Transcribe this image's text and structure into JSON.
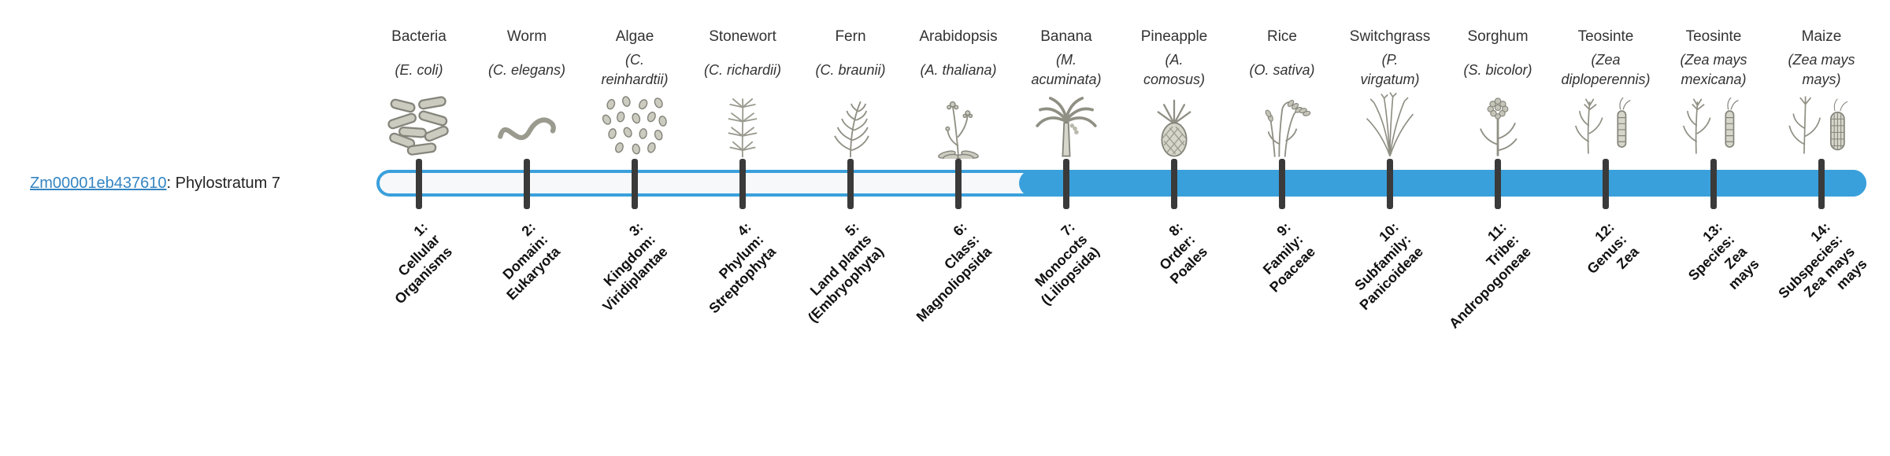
{
  "gene": {
    "id": "Zm00001eb437610",
    "suffix": ": Phylostratum 7"
  },
  "colors": {
    "accent_blue": "#3aa0dc",
    "link_blue": "#3585c2",
    "tick_dark": "#3a3a3a",
    "track_bg": "#f6f8fa",
    "text_dark": "#333333"
  },
  "timeline": {
    "phylostratum_highlighted": 7,
    "total_strata": 14
  },
  "strata": [
    {
      "common": "Bacteria",
      "latin": "(E. coli)",
      "icon": "bacteria-icon",
      "label": "1:\nCellular\nOrganisms"
    },
    {
      "common": "Worm",
      "latin": "(C. elegans)",
      "icon": "worm-icon",
      "label": "2:\nDomain:\nEukaryota"
    },
    {
      "common": "Algae",
      "latin": "(C.\nreinhardtii)",
      "icon": "algae-icon",
      "label": "3:\nKingdom:\nViridiplantae"
    },
    {
      "common": "Stonewort",
      "latin": "(C. richardii)",
      "icon": "stonewort-icon",
      "label": "4:\nPhylum:\nStreptophyta"
    },
    {
      "common": "Fern",
      "latin": "(C. braunii)",
      "icon": "fern-icon",
      "label": "5:\nLand plants\n(Embryophyta)"
    },
    {
      "common": "Arabidopsis",
      "latin": "(A. thaliana)",
      "icon": "arabidopsis-icon",
      "label": "6:\nClass:\nMagnoliopsida"
    },
    {
      "common": "Banana",
      "latin": "(M.\nacuminata)",
      "icon": "banana-icon",
      "label": "7:\nMonocots\n(Liliopsida)"
    },
    {
      "common": "Pineapple",
      "latin": "(A.\ncomosus)",
      "icon": "pineapple-icon",
      "label": "8:\nOrder:\nPoales"
    },
    {
      "common": "Rice",
      "latin": "(O. sativa)",
      "icon": "rice-icon",
      "label": "9:\nFamily:\nPoaceae"
    },
    {
      "common": "Switchgrass",
      "latin": "(P.\nvirgatum)",
      "icon": "switchgrass-icon",
      "label": "10:\nSubfamily:\nPanicoideae"
    },
    {
      "common": "Sorghum",
      "latin": "(S. bicolor)",
      "icon": "sorghum-icon",
      "label": "11:\nTribe:\nAndropogoneae"
    },
    {
      "common": "Teosinte",
      "latin": "(Zea\ndiploperennis)",
      "icon": "teosinte-icon",
      "label": "12:\nGenus:\nZea"
    },
    {
      "common": "Teosinte",
      "latin": "(Zea mays\nmexicana)",
      "icon": "teosinte-icon",
      "label": "13:\nSpecies:\nZea\nmays"
    },
    {
      "common": "Maize",
      "latin": "(Zea mays\nmays)",
      "icon": "maize-icon",
      "label": "14:\nSubspecies:\nZea mays\nmays"
    }
  ]
}
